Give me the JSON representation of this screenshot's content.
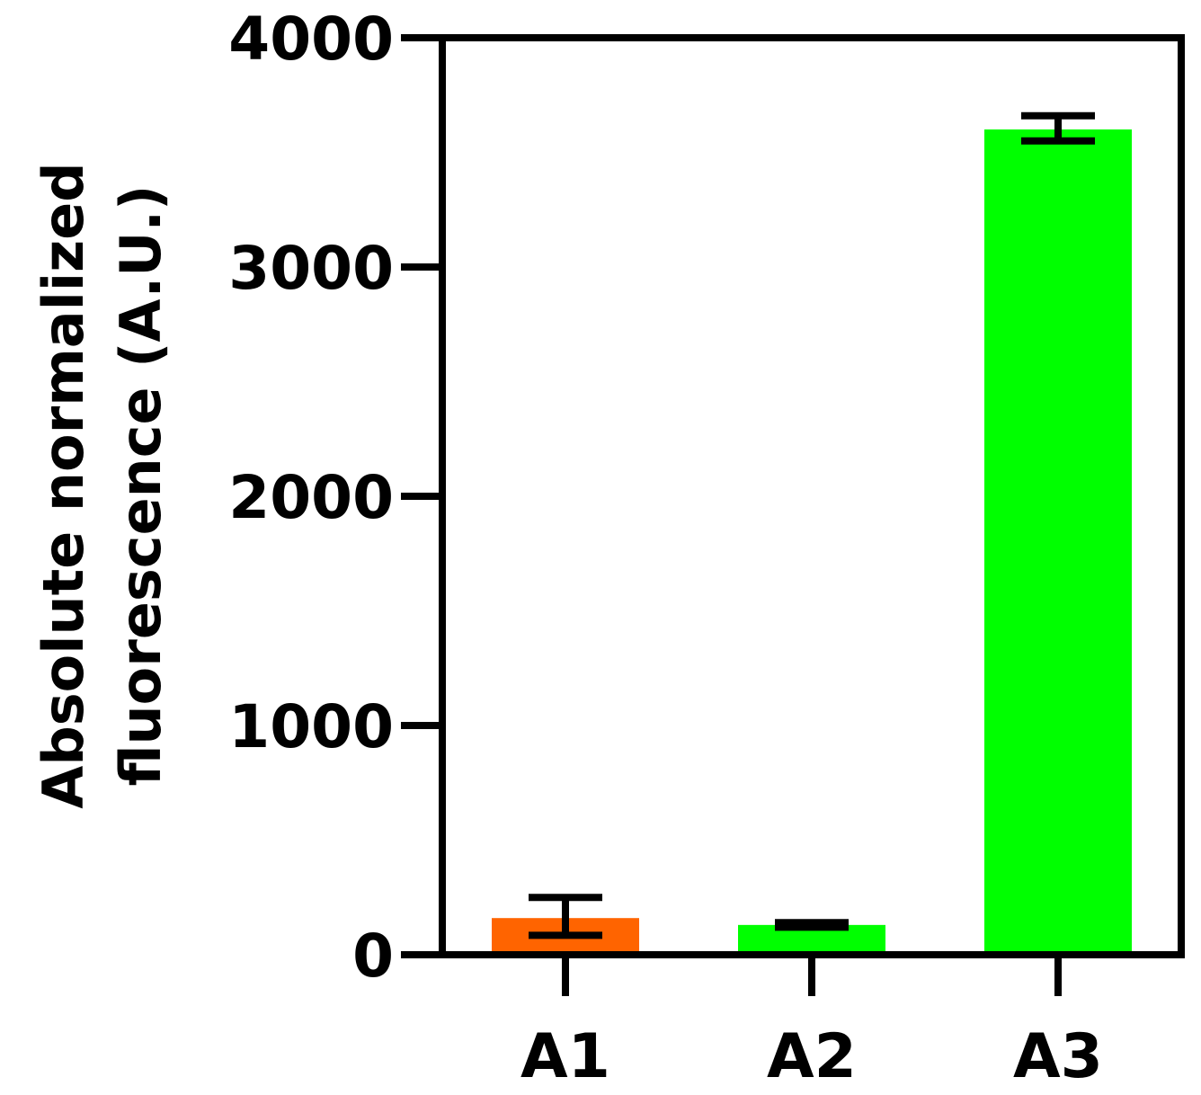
{
  "chart_data": {
    "type": "bar",
    "title": "",
    "xlabel": "",
    "ylabel": [
      "Absolute normalized",
      "fluorescence (A.U.)"
    ],
    "categories": [
      "A1",
      "A2",
      "A3"
    ],
    "values": [
      160,
      130,
      3600
    ],
    "error_low": [
      85,
      120,
      3550
    ],
    "error_high": [
      250,
      140,
      3660
    ],
    "colors": [
      "#ff6400",
      "#00ff00",
      "#00ff00"
    ],
    "ylim": [
      0,
      4000
    ],
    "yticks": [
      0,
      1000,
      2000,
      3000,
      4000
    ],
    "ytick_labels": [
      "0",
      "1000",
      "2000",
      "3000",
      "4000"
    ],
    "grid": false,
    "legend": "none"
  }
}
